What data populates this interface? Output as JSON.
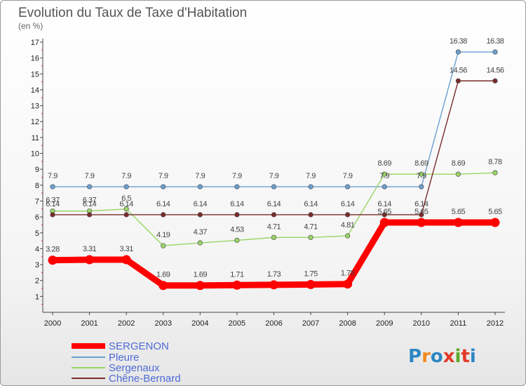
{
  "chart_data": {
    "type": "line",
    "title": "Evolution du Taux de Taxe d'Habitation",
    "subtitle": "(en %)",
    "xlabel": "",
    "ylabel": "",
    "ylim": [
      0,
      17
    ],
    "yticks": [
      1,
      2,
      3,
      4,
      5,
      6,
      7,
      8,
      9,
      10,
      11,
      12,
      13,
      14,
      15,
      16,
      17
    ],
    "categories": [
      "2000",
      "2001",
      "2002",
      "2003",
      "2004",
      "2005",
      "2006",
      "2007",
      "2008",
      "2009",
      "2010",
      "2011",
      "2012"
    ],
    "grid": false,
    "legend_position": "bottom-left",
    "series": [
      {
        "name": "SERGENON",
        "color": "#ff0000",
        "values": [
          3.28,
          3.31,
          3.31,
          1.69,
          1.69,
          1.71,
          1.73,
          1.75,
          1.78,
          5.65,
          5.65,
          5.65,
          5.65
        ],
        "labels": [
          "3.28",
          "3.31",
          "3.31",
          "1.69",
          "1.69",
          "1.71",
          "1.73",
          "1.75",
          "1.78",
          "5.65",
          "5.65",
          "5.65",
          "5.65"
        ]
      },
      {
        "name": "Pleure",
        "color": "#6a9fd1",
        "values": [
          7.9,
          7.9,
          7.9,
          7.9,
          7.9,
          7.9,
          7.9,
          7.9,
          7.9,
          7.9,
          7.9,
          16.38,
          16.38
        ],
        "labels": [
          "7.9",
          "7.9",
          "7.9",
          "7.9",
          "7.9",
          "7.9",
          "7.9",
          "7.9",
          "7.9",
          "7.9",
          "7.9",
          "16.38",
          "16.38"
        ]
      },
      {
        "name": "Sergenaux",
        "color": "#99d466",
        "values": [
          6.37,
          6.37,
          6.5,
          4.19,
          4.37,
          4.53,
          4.71,
          4.71,
          4.81,
          8.69,
          8.69,
          8.69,
          8.78
        ],
        "labels": [
          "6.37",
          "6.37",
          "6.5",
          "4.19",
          "4.37",
          "4.53",
          "4.71",
          "4.71",
          "4.81",
          "8.69",
          "8.69",
          "8.69",
          "8.78"
        ]
      },
      {
        "name": "Chêne-Bernard",
        "color": "#7a2a2a",
        "values": [
          6.14,
          6.14,
          6.14,
          6.14,
          6.14,
          6.14,
          6.14,
          6.14,
          6.14,
          6.14,
          6.14,
          14.56,
          14.56
        ],
        "labels": [
          "6.14",
          "6.14",
          "6.14",
          "6.14",
          "6.14",
          "6.14",
          "6.14",
          "6.14",
          "6.14",
          "6.14",
          "6.14",
          "14.56",
          "14.56"
        ]
      }
    ]
  },
  "logo": {
    "text": "Proxiti"
  }
}
